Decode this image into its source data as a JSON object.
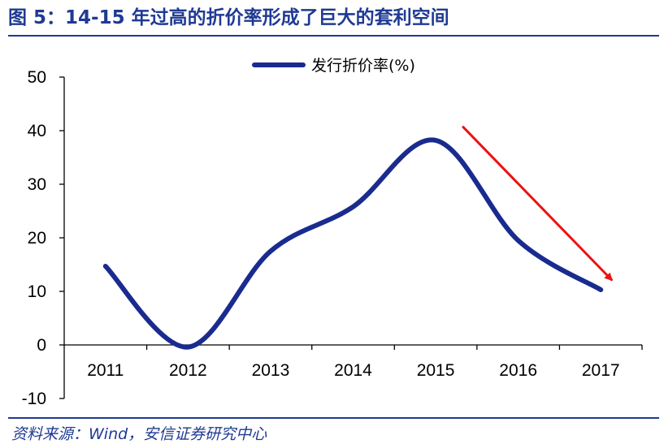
{
  "title": "图 5：14-15 年过高的折价率形成了巨大的套利空间",
  "source": "资料来源：Wind，安信证券研究中心",
  "colors": {
    "title": "#1f3a93",
    "series": "#1a2b8f",
    "arrow": "#ee1111"
  },
  "chart_data": {
    "type": "line",
    "categories": [
      "2011",
      "2012",
      "2013",
      "2014",
      "2015",
      "2016",
      "2017"
    ],
    "series": [
      {
        "name": "发行折价率(%)",
        "values": [
          14.7,
          -0.4,
          17.5,
          25.8,
          38.2,
          19.5,
          10.3
        ]
      }
    ],
    "yticks": [
      "50",
      "40",
      "30",
      "20",
      "10",
      "0",
      "-10"
    ],
    "ylim": [
      -10,
      50
    ],
    "grid": false,
    "legend": "top-center",
    "annotation": {
      "type": "arrow",
      "from": {
        "x": "2015",
        "y": 40.5
      },
      "to": {
        "x": "2017",
        "y": 12.5
      }
    }
  }
}
